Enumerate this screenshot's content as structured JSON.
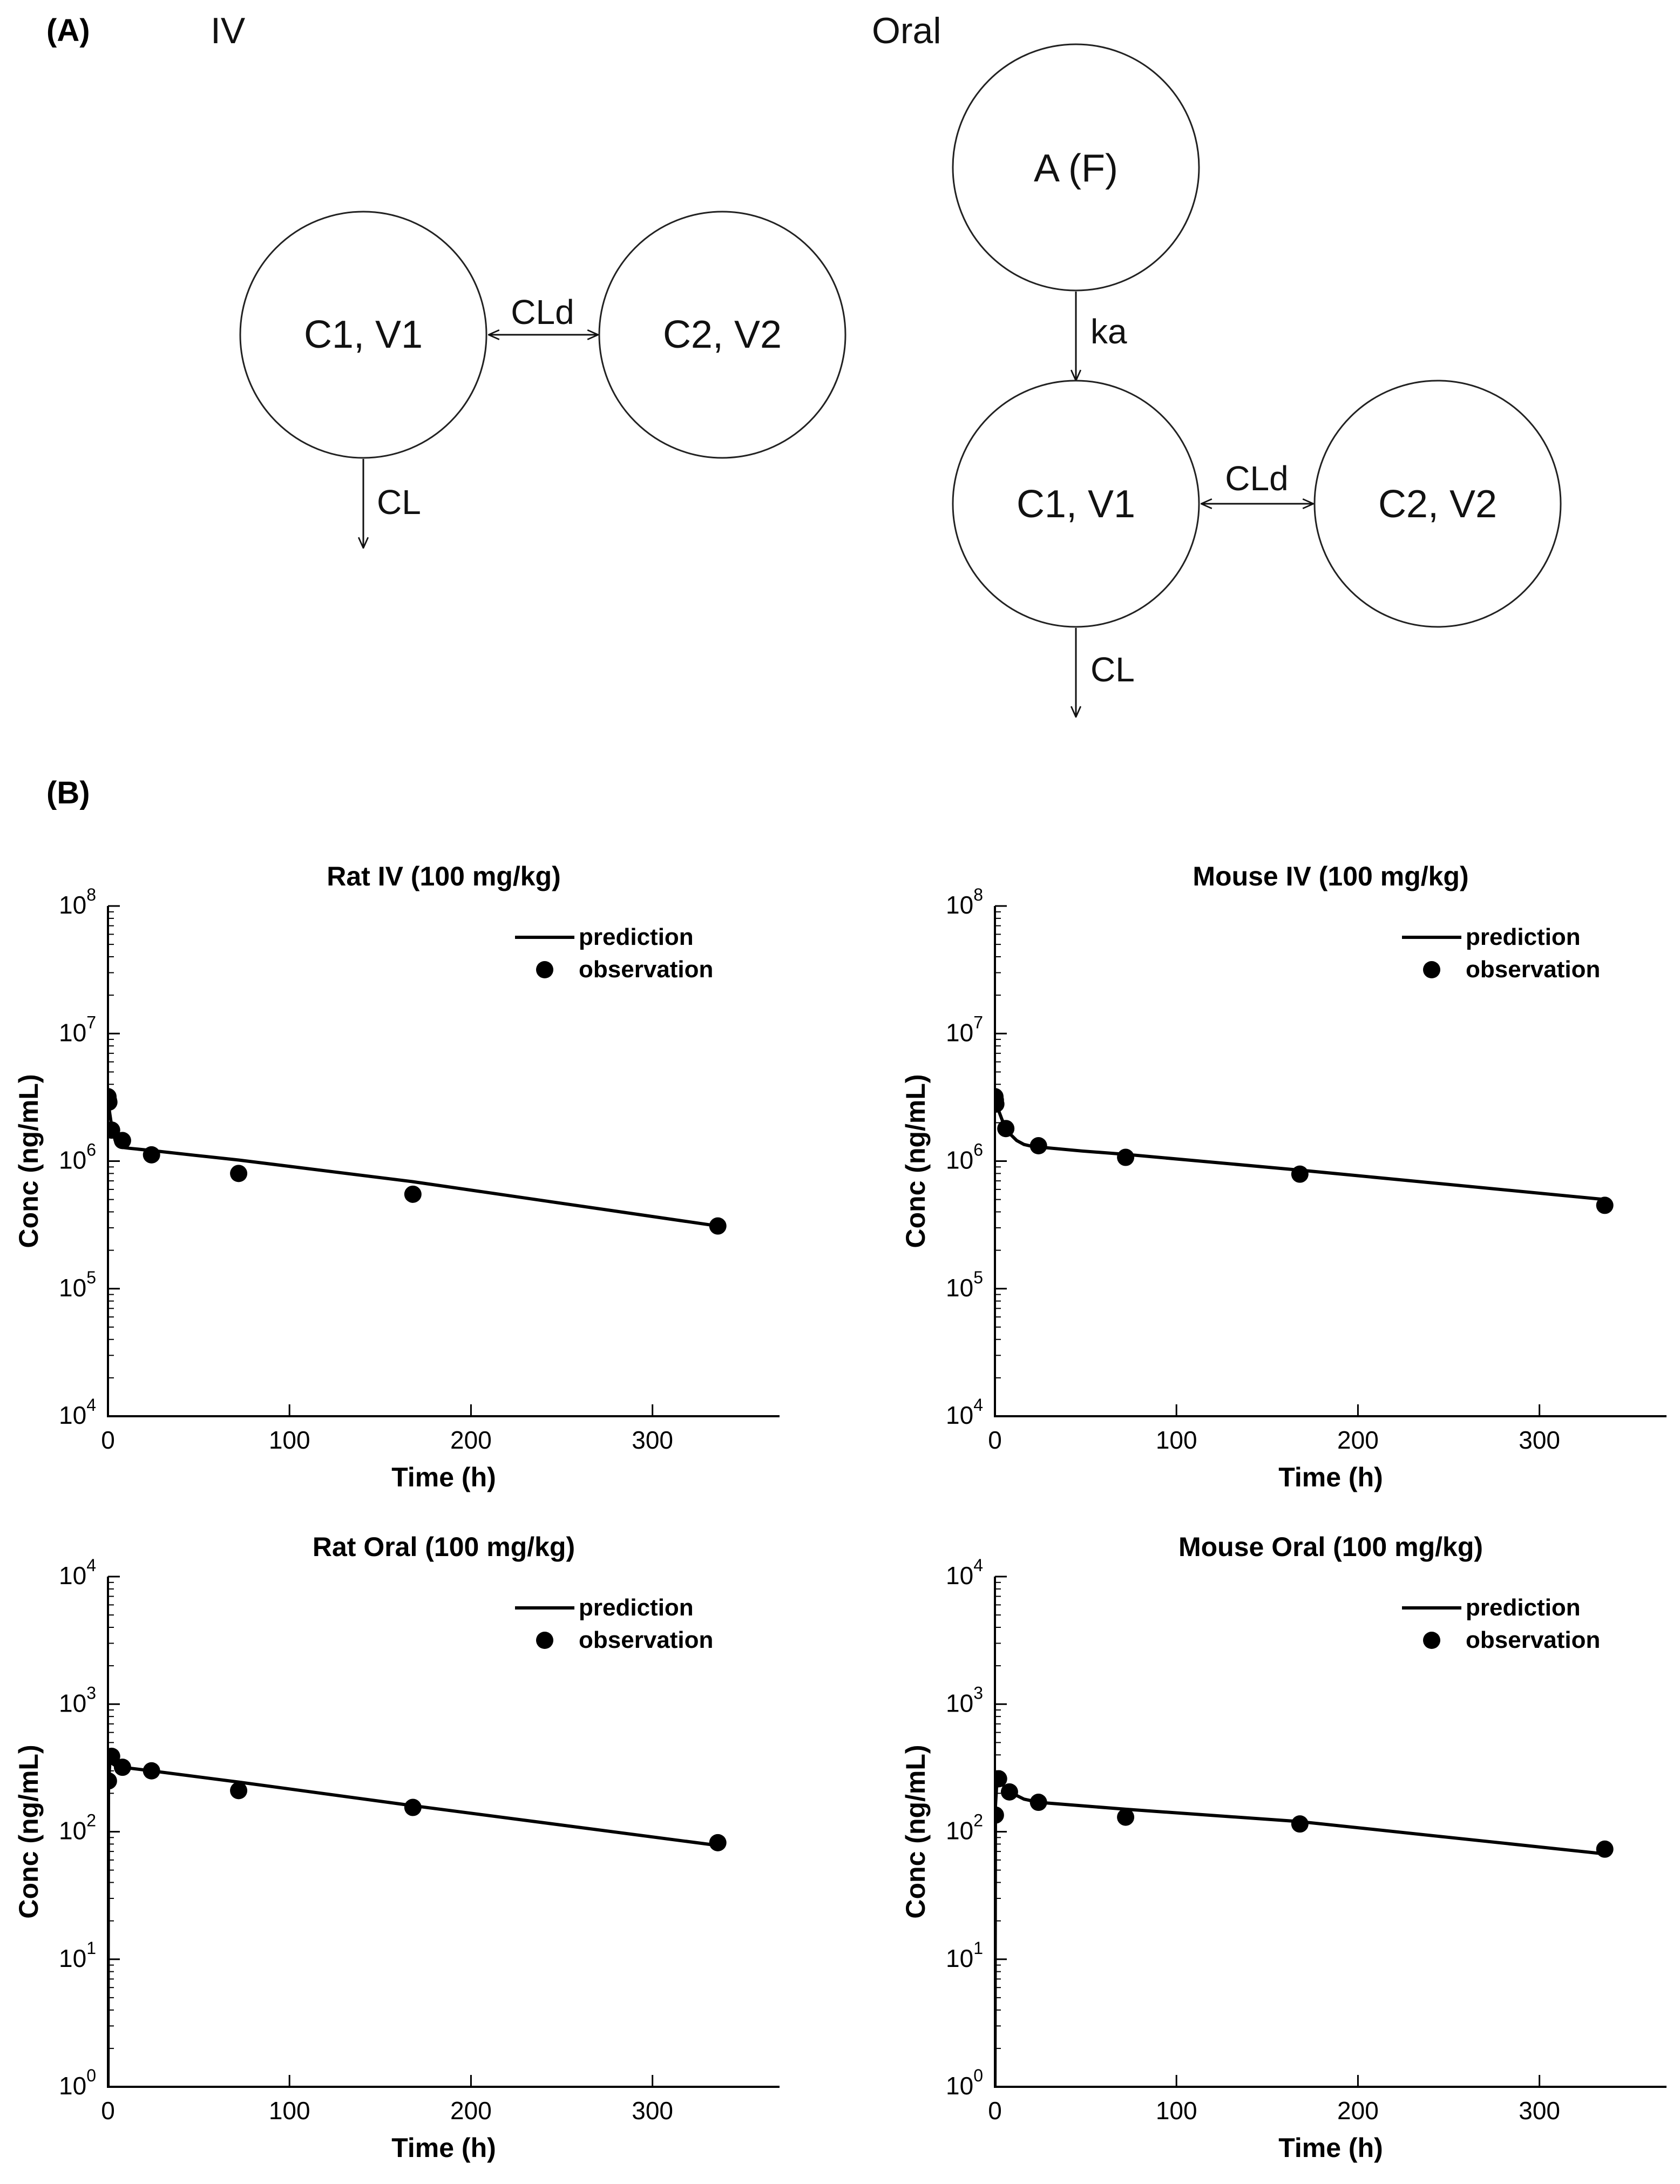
{
  "panel_a": {
    "label": "(A)",
    "iv_title": "IV",
    "oral_title": "Oral",
    "iv": {
      "central": "C1, V1",
      "peripheral": "C2, V2",
      "distribution": "CLd",
      "elimination": "CL"
    },
    "oral": {
      "depot": "A (F)",
      "absorption": "ka",
      "central": "C1, V1",
      "peripheral": "C2, V2",
      "distribution": "CLd",
      "elimination": "CL"
    }
  },
  "panel_b": {
    "label": "(B)"
  },
  "chart_data": [
    {
      "type": "line",
      "title": "Rat IV (100 mg/kg)",
      "xlabel": "Time (h)",
      "ylabel": "Conc (ng/mL)",
      "yscale": "log",
      "xlim": [
        0,
        370
      ],
      "ylim": [
        10000,
        100000000
      ],
      "xticks": [
        0,
        100,
        200,
        300
      ],
      "xtick_labels": [
        "0",
        "100",
        "200",
        "300"
      ],
      "ytick_exponents": [
        4,
        5,
        6,
        7,
        8
      ],
      "legend": {
        "location": "top-right",
        "entries": [
          "prediction",
          "observation"
        ]
      },
      "series": [
        {
          "name": "prediction",
          "kind": "line",
          "x": [
            0,
            1,
            2,
            4,
            6,
            8,
            12,
            24,
            48,
            72,
            168,
            336
          ],
          "y": [
            3000000,
            2350000,
            1900000,
            1450000,
            1320000,
            1280000,
            1260000,
            1210000,
            1110000,
            1020000,
            690000,
            310000
          ]
        },
        {
          "name": "observation",
          "kind": "scatter",
          "x": [
            0,
            0.25,
            0.5,
            2,
            8,
            24,
            72,
            168,
            336
          ],
          "y": [
            3200000,
            3000000,
            2900000,
            1750000,
            1450000,
            1120000,
            800000,
            550000,
            310000
          ]
        }
      ]
    },
    {
      "type": "line",
      "title": "Mouse IV (100 mg/kg)",
      "xlabel": "Time (h)",
      "ylabel": "Conc (ng/mL)",
      "yscale": "log",
      "xlim": [
        0,
        370
      ],
      "ylim": [
        10000,
        100000000
      ],
      "xticks": [
        0,
        100,
        200,
        300
      ],
      "xtick_labels": [
        "0",
        "100",
        "200",
        "300"
      ],
      "ytick_exponents": [
        4,
        5,
        6,
        7,
        8
      ],
      "legend": {
        "location": "top-right",
        "entries": [
          "prediction",
          "observation"
        ]
      },
      "series": [
        {
          "name": "prediction",
          "kind": "line",
          "x": [
            0,
            2,
            4,
            8,
            12,
            16,
            20,
            24,
            48,
            72,
            168,
            336
          ],
          "y": [
            3100000,
            2500000,
            2100000,
            1650000,
            1450000,
            1350000,
            1310000,
            1290000,
            1200000,
            1130000,
            850000,
            500000
          ]
        },
        {
          "name": "observation",
          "kind": "scatter",
          "x": [
            0,
            0.25,
            0.5,
            6,
            24,
            72,
            168,
            336
          ],
          "y": [
            3200000,
            3000000,
            2800000,
            1800000,
            1320000,
            1070000,
            790000,
            450000
          ]
        }
      ]
    },
    {
      "type": "line",
      "title": "Rat Oral (100 mg/kg)",
      "xlabel": "Time (h)",
      "ylabel": "Conc (ng/mL)",
      "yscale": "log",
      "xlim": [
        0,
        370
      ],
      "ylim": [
        1,
        10000
      ],
      "xticks": [
        0,
        100,
        200,
        300
      ],
      "xtick_labels": [
        "0",
        "100",
        "200",
        "300"
      ],
      "ytick_exponents": [
        0,
        1,
        2,
        3,
        4
      ],
      "legend": {
        "location": "top-right",
        "entries": [
          "prediction",
          "observation"
        ]
      },
      "series": [
        {
          "name": "prediction",
          "kind": "line",
          "x": [
            0,
            0.3,
            1,
            2,
            4,
            8,
            24,
            72,
            168,
            336
          ],
          "y": [
            0.001,
            230,
            345,
            345,
            330,
            320,
            300,
            245,
            160,
            78
          ]
        },
        {
          "name": "observation",
          "kind": "scatter",
          "x": [
            0.25,
            2,
            8,
            24,
            72,
            168,
            336
          ],
          "y": [
            250,
            390,
            320,
            300,
            210,
            155,
            82
          ]
        }
      ]
    },
    {
      "type": "line",
      "title": "Mouse Oral (100 mg/kg)",
      "xlabel": "Time (h)",
      "ylabel": "Conc (ng/mL)",
      "yscale": "log",
      "xlim": [
        0,
        370
      ],
      "ylim": [
        1,
        10000
      ],
      "xticks": [
        0,
        100,
        200,
        300
      ],
      "xtick_labels": [
        "0",
        "100",
        "200",
        "300"
      ],
      "ytick_exponents": [
        0,
        1,
        2,
        3,
        4
      ],
      "legend": {
        "location": "top-right",
        "entries": [
          "prediction",
          "observation"
        ]
      },
      "series": [
        {
          "name": "prediction",
          "kind": "line",
          "x": [
            0,
            0.3,
            1,
            2,
            4,
            8,
            16,
            24,
            72,
            168,
            336
          ],
          "y": [
            0.001,
            160,
            240,
            255,
            235,
            205,
            180,
            170,
            150,
            120,
            67
          ]
        },
        {
          "name": "observation",
          "kind": "scatter",
          "x": [
            0.25,
            2,
            8,
            24,
            72,
            168,
            336
          ],
          "y": [
            135,
            260,
            205,
            170,
            130,
            115,
            73
          ]
        }
      ]
    }
  ]
}
